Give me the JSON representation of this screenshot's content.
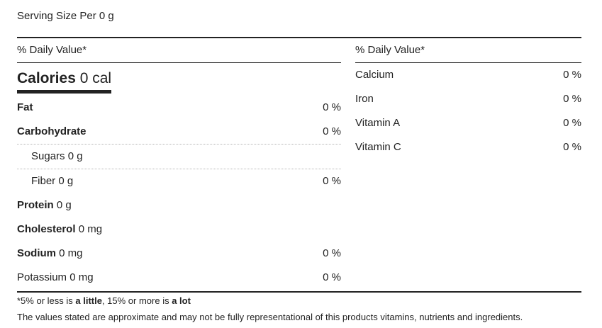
{
  "serving": "Serving Size Per 0 g",
  "daily_value_header": "% Daily Value*",
  "calories": {
    "label": "Calories",
    "value": "0 cal"
  },
  "left_rows": [
    {
      "label": "Fat",
      "amount": "",
      "percent": "0 %"
    },
    {
      "label": "Carbohydrate",
      "amount": "",
      "percent": "0 %"
    },
    {
      "label": "Sugars",
      "amount": "0 g",
      "percent": ""
    },
    {
      "label": "Fiber",
      "amount": "0 g",
      "percent": "0 %"
    },
    {
      "label": "Protein",
      "amount": "0 g",
      "percent": ""
    },
    {
      "label": "Cholesterol",
      "amount": "0 mg",
      "percent": ""
    },
    {
      "label": "Sodium",
      "amount": "0 mg",
      "percent": "0 %"
    },
    {
      "label": "Potassium",
      "amount": "0 mg",
      "percent": "0 %"
    }
  ],
  "right_rows": [
    {
      "label": "Calcium",
      "percent": "0 %"
    },
    {
      "label": "Iron",
      "percent": "0 %"
    },
    {
      "label": "Vitamin A",
      "percent": "0 %"
    },
    {
      "label": "Vitamin C",
      "percent": "0 %"
    }
  ],
  "footnote": {
    "part1": "*5% or less is ",
    "little": "a little",
    "part2": ", 15% or more is ",
    "lot": "a lot"
  },
  "disclaimer": "The values stated are approximate and may not be fully representational of this products vitamins, nutrients and ingredients."
}
